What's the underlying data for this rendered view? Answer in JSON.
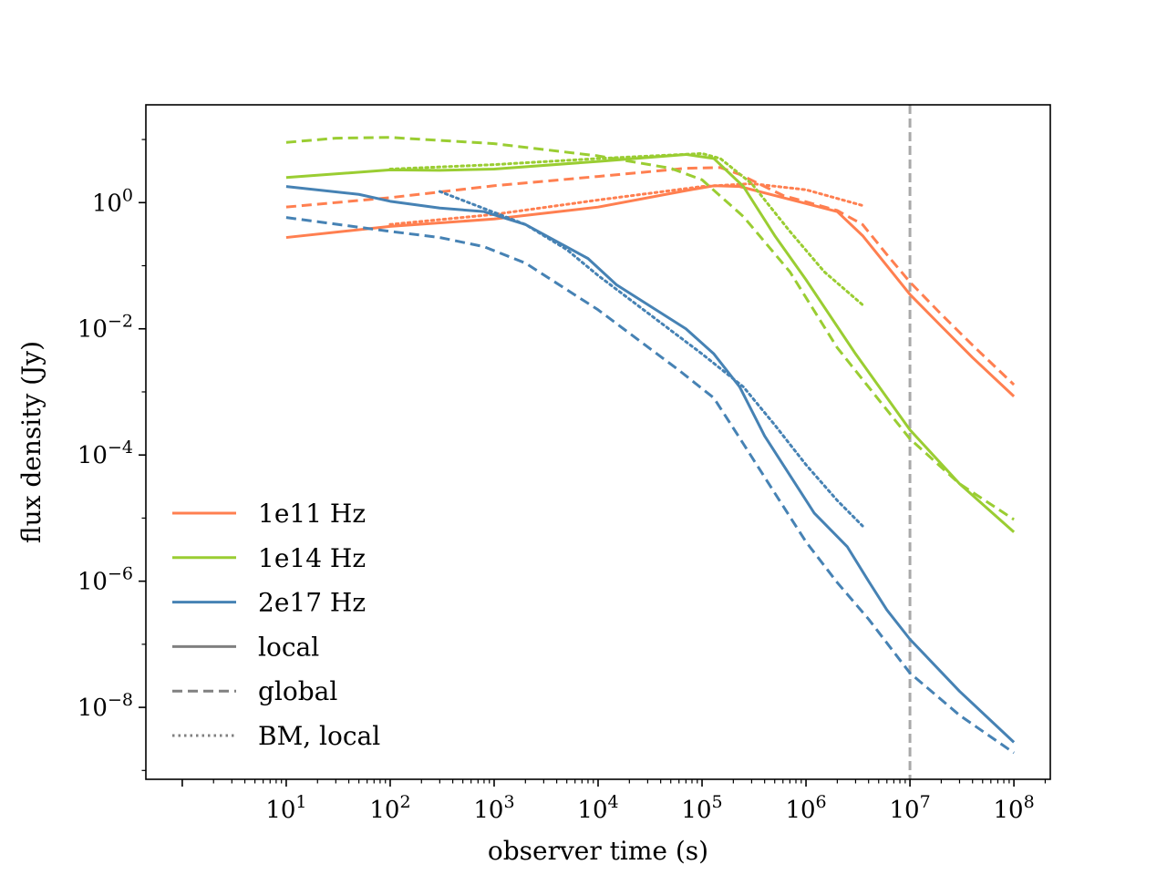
{
  "chart_data": {
    "type": "line",
    "title": "",
    "xlabel": "observer time (s)",
    "ylabel": "flux density (Jy)",
    "xscale": "log",
    "yscale": "log",
    "xlim_exp": [
      -0.35,
      8.35
    ],
    "ylim_exp": [
      -9.14,
      1.55
    ],
    "x_ticks": [
      {
        "exp": 1,
        "base": "10",
        "sup": "1"
      },
      {
        "exp": 2,
        "base": "10",
        "sup": "2"
      },
      {
        "exp": 3,
        "base": "10",
        "sup": "3"
      },
      {
        "exp": 4,
        "base": "10",
        "sup": "4"
      },
      {
        "exp": 5,
        "base": "10",
        "sup": "5"
      },
      {
        "exp": 6,
        "base": "10",
        "sup": "6"
      },
      {
        "exp": 7,
        "base": "10",
        "sup": "7"
      },
      {
        "exp": 8,
        "base": "10",
        "sup": "8"
      }
    ],
    "y_ticks": [
      {
        "exp": 0,
        "base": "10",
        "sup": "0"
      },
      {
        "exp": -2,
        "base": "10",
        "sup": "−2"
      },
      {
        "exp": -4,
        "base": "10",
        "sup": "−4"
      },
      {
        "exp": -6,
        "base": "10",
        "sup": "−6"
      },
      {
        "exp": -8,
        "base": "10",
        "sup": "−8"
      }
    ],
    "vline": {
      "x": 10000000,
      "color": "#a9a9a9",
      "style": "dashed"
    },
    "legend": {
      "position": "lower-left",
      "entries": [
        {
          "label": "1e11 Hz",
          "color": "#ff7f50",
          "style": "solid"
        },
        {
          "label": "1e14 Hz",
          "color": "#9acd32",
          "style": "solid"
        },
        {
          "label": "2e17 Hz",
          "color": "#4682b4",
          "style": "solid"
        },
        {
          "label": "local",
          "color": "#808080",
          "style": "solid"
        },
        {
          "label": "global",
          "color": "#808080",
          "style": "dashed"
        },
        {
          "label": "BM, local",
          "color": "#808080",
          "style": "dotted"
        }
      ]
    },
    "series": [
      {
        "name": "1e11 Hz local",
        "color": "#ff7f50",
        "style": "solid",
        "points": [
          [
            10,
            0.28
          ],
          [
            100,
            0.42
          ],
          [
            1000,
            0.55
          ],
          [
            10000,
            0.85
          ],
          [
            70000,
            1.55
          ],
          [
            130000,
            1.85
          ],
          [
            230000,
            1.8
          ],
          [
            600000,
            1.2
          ],
          [
            2000000,
            0.72
          ],
          [
            3500000,
            0.3
          ],
          [
            6000000,
            0.1
          ],
          [
            10000000,
            0.035
          ],
          [
            20000000,
            0.011
          ],
          [
            40000000,
            0.0035
          ],
          [
            100000000,
            0.00085
          ]
        ]
      },
      {
        "name": "1e11 Hz global",
        "color": "#ff7f50",
        "style": "dashed",
        "points": [
          [
            10,
            0.85
          ],
          [
            100,
            1.2
          ],
          [
            1000,
            1.85
          ],
          [
            10000,
            2.6
          ],
          [
            70000,
            3.5
          ],
          [
            150000,
            3.6
          ],
          [
            230000,
            2.8
          ],
          [
            600000,
            1.3
          ],
          [
            2000000,
            0.75
          ],
          [
            3500000,
            0.45
          ],
          [
            6000000,
            0.15
          ],
          [
            10000000,
            0.055
          ],
          [
            20000000,
            0.017
          ],
          [
            40000000,
            0.0055
          ],
          [
            100000000,
            0.0013
          ]
        ]
      },
      {
        "name": "1e11 Hz BM local",
        "color": "#ff7f50",
        "style": "dotted",
        "points": [
          [
            100,
            0.45
          ],
          [
            1000,
            0.65
          ],
          [
            10000,
            1.1
          ],
          [
            100000,
            1.8
          ],
          [
            300000,
            2.0
          ],
          [
            1000000,
            1.6
          ],
          [
            3500000,
            0.9
          ]
        ]
      },
      {
        "name": "1e14 Hz local",
        "color": "#9acd32",
        "style": "solid",
        "points": [
          [
            10,
            2.5
          ],
          [
            100,
            3.3
          ],
          [
            300,
            3.25
          ],
          [
            1000,
            3.4
          ],
          [
            10000,
            4.5
          ],
          [
            70000,
            5.8
          ],
          [
            130000,
            5.0
          ],
          [
            250000,
            1.8
          ],
          [
            500000,
            0.3
          ],
          [
            1000000,
            0.06
          ],
          [
            3000000,
            0.004
          ],
          [
            10000000,
            0.00025
          ],
          [
            30000000,
            3.5e-05
          ],
          [
            100000000,
            6e-06
          ]
        ]
      },
      {
        "name": "1e14 Hz global",
        "color": "#9acd32",
        "style": "dashed",
        "points": [
          [
            10,
            9
          ],
          [
            30,
            10.5
          ],
          [
            100,
            10.8
          ],
          [
            1000,
            8.6
          ],
          [
            10000,
            5.5
          ],
          [
            50000,
            3.5
          ],
          [
            100000,
            2.3
          ],
          [
            250000,
            0.6
          ],
          [
            700000,
            0.08
          ],
          [
            2000000,
            0.005
          ],
          [
            10000000,
            0.00018
          ],
          [
            30000000,
            3.5e-05
          ],
          [
            100000000,
            9.5e-06
          ]
        ]
      },
      {
        "name": "1e14 Hz BM local",
        "color": "#9acd32",
        "style": "dotted",
        "points": [
          [
            100,
            3.4
          ],
          [
            1000,
            4
          ],
          [
            10000,
            5
          ],
          [
            100000,
            6
          ],
          [
            150000,
            5
          ],
          [
            300000,
            2
          ],
          [
            700000,
            0.35
          ],
          [
            1500000,
            0.08
          ],
          [
            3500000,
            0.024
          ]
        ]
      },
      {
        "name": "2e17 Hz local",
        "color": "#4682b4",
        "style": "solid",
        "points": [
          [
            10,
            1.8
          ],
          [
            50,
            1.35
          ],
          [
            100,
            1.05
          ],
          [
            300,
            0.82
          ],
          [
            800,
            0.72
          ],
          [
            2000,
            0.45
          ],
          [
            8000,
            0.13
          ],
          [
            15000,
            0.05
          ],
          [
            70000,
            0.01
          ],
          [
            130000,
            0.004
          ],
          [
            230000,
            0.0012
          ],
          [
            400000,
            0.0002
          ],
          [
            1200000,
            1.2e-05
          ],
          [
            2500000,
            3.5e-06
          ],
          [
            4000000,
            1e-06
          ],
          [
            6000000,
            3.5e-07
          ],
          [
            10000000,
            1.2e-07
          ],
          [
            30000000,
            1.8e-08
          ],
          [
            100000000,
            2.8e-09
          ]
        ]
      },
      {
        "name": "2e17 Hz global",
        "color": "#4682b4",
        "style": "dashed",
        "points": [
          [
            10,
            0.58
          ],
          [
            100,
            0.35
          ],
          [
            300,
            0.28
          ],
          [
            800,
            0.2
          ],
          [
            2000,
            0.11
          ],
          [
            10000,
            0.02
          ],
          [
            60000,
            0.0022
          ],
          [
            130000,
            0.0008
          ],
          [
            250000,
            0.00015
          ],
          [
            500000,
            2.5e-05
          ],
          [
            1000000,
            4.2e-06
          ],
          [
            2000000,
            9.5e-07
          ],
          [
            4000000,
            2.5e-07
          ],
          [
            10000000,
            3.5e-08
          ],
          [
            30000000,
            7.5e-09
          ],
          [
            100000000,
            1.9e-09
          ]
        ]
      },
      {
        "name": "2e17 Hz BM local",
        "color": "#4682b4",
        "style": "dotted",
        "points": [
          [
            300,
            1.5
          ],
          [
            1000,
            0.7
          ],
          [
            2000,
            0.45
          ],
          [
            5000,
            0.18
          ],
          [
            10000,
            0.07
          ],
          [
            100000,
            0.004
          ],
          [
            250000,
            0.0012
          ],
          [
            500000,
            0.0003
          ],
          [
            1000000,
            7e-05
          ],
          [
            2000000,
            1.9e-05
          ],
          [
            3500000,
            7.5e-06
          ]
        ]
      }
    ]
  }
}
